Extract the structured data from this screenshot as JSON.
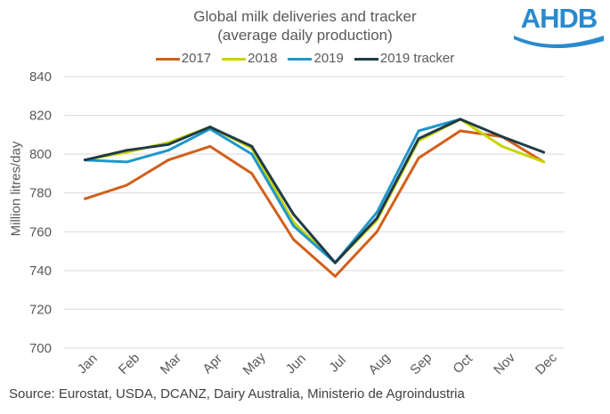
{
  "logo": {
    "text": "AHDB",
    "color": "#2A8ACD"
  },
  "source": "Source: Eurostat, USDA, DCANZ, Dairy Australia, Ministerio de Agroindustria",
  "chart_data": {
    "type": "line",
    "title": [
      "Global milk deliveries and tracker",
      "(average daily production)"
    ],
    "xlabel": "",
    "ylabel": "Million litres/day",
    "ylim": [
      700,
      840
    ],
    "yticks": [
      700,
      720,
      740,
      760,
      780,
      800,
      820,
      840
    ],
    "grid": true,
    "legend_position": "top-center",
    "categories": [
      "Jan",
      "Feb",
      "Mar",
      "Apr",
      "May",
      "Jun",
      "Jul",
      "Aug",
      "Sep",
      "Oct",
      "Nov",
      "Dec"
    ],
    "series": [
      {
        "name": "2017",
        "color": "#D2601A",
        "values": [
          777,
          784,
          797,
          804,
          790,
          756,
          737,
          760,
          798,
          812,
          809,
          796
        ]
      },
      {
        "name": "2018",
        "color": "#C8D400",
        "values": [
          797,
          801,
          806,
          814,
          803,
          765,
          744,
          766,
          807,
          818,
          804,
          796
        ]
      },
      {
        "name": "2019",
        "color": "#1F97CC",
        "values": [
          797,
          796,
          802,
          813,
          800,
          763,
          744,
          770,
          812,
          818,
          null,
          null
        ]
      },
      {
        "name": "2019 tracker",
        "color": "#1E3B46",
        "values": [
          797,
          802,
          805,
          814,
          804,
          769,
          744,
          767,
          808,
          818,
          809,
          801
        ]
      }
    ]
  }
}
